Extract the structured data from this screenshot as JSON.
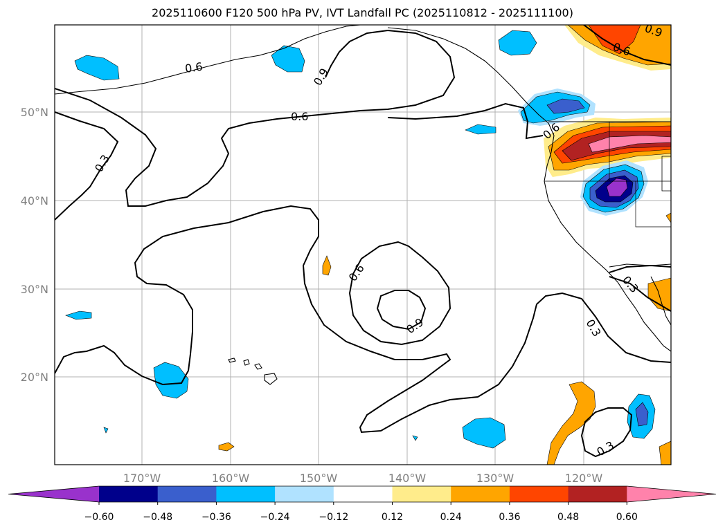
{
  "title": "2025110600 F120 500 hPa PV, IVT Landfall PC (2025110812 - 2025111100)",
  "lat_ticks": [
    "50°N",
    "40°N",
    "30°N",
    "20°N"
  ],
  "lon_ticks": [
    "170°W",
    "160°W",
    "150°W",
    "140°W",
    "130°W",
    "120°W"
  ],
  "contour_labels": [
    "0.6",
    "0.9",
    "0.6",
    "0.3",
    "0.6",
    "0.9",
    "0.6",
    "0.6",
    "0.9",
    "0.3",
    "0.3",
    "0.3"
  ],
  "colorbar": {
    "ticks": [
      "−0.60",
      "−0.48",
      "−0.36",
      "−0.24",
      "−0.12",
      "0.12",
      "0.24",
      "0.36",
      "0.48",
      "0.60"
    ],
    "colors": [
      "#9932cc",
      "#00008b",
      "#3a5fcd",
      "#00bfff",
      "#b0e2ff",
      "#ffffff",
      "#ffec8b",
      "#ffa500",
      "#ff4500",
      "#b22222",
      "#ff82ab"
    ]
  }
}
